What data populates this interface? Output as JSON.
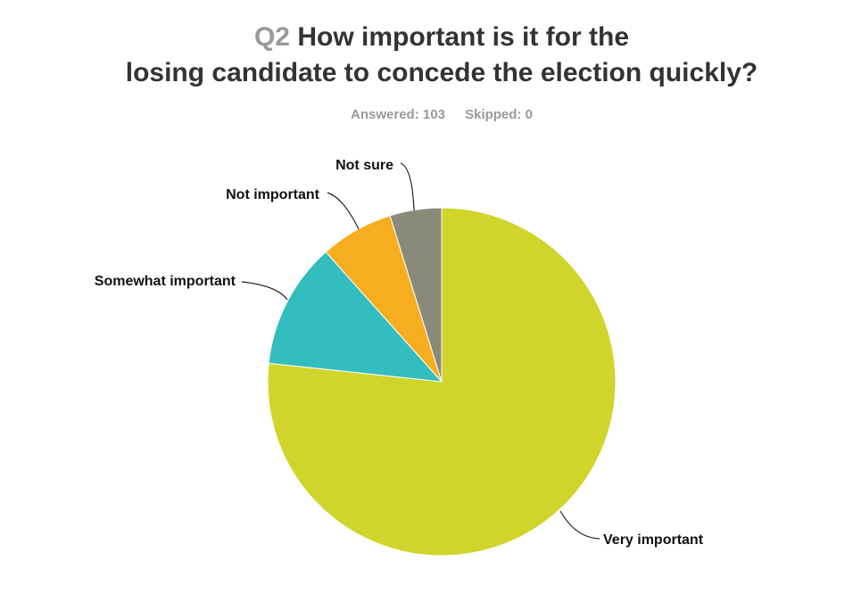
{
  "title": {
    "question_number": "Q2",
    "question_text": "How important is it for the losing candidate to concede the election quickly?"
  },
  "stats": {
    "answered": "Answered: 103",
    "skipped": "Skipped: 0"
  },
  "chart_data": {
    "type": "pie",
    "categories": [
      "Very important",
      "Somewhat important",
      "Not important",
      "Not sure"
    ],
    "values": [
      76.7,
      11.7,
      6.8,
      4.8
    ],
    "colors": [
      "#cfd52a",
      "#33bdbe",
      "#f6ae20",
      "#8a8a7a"
    ],
    "legend": "none"
  }
}
